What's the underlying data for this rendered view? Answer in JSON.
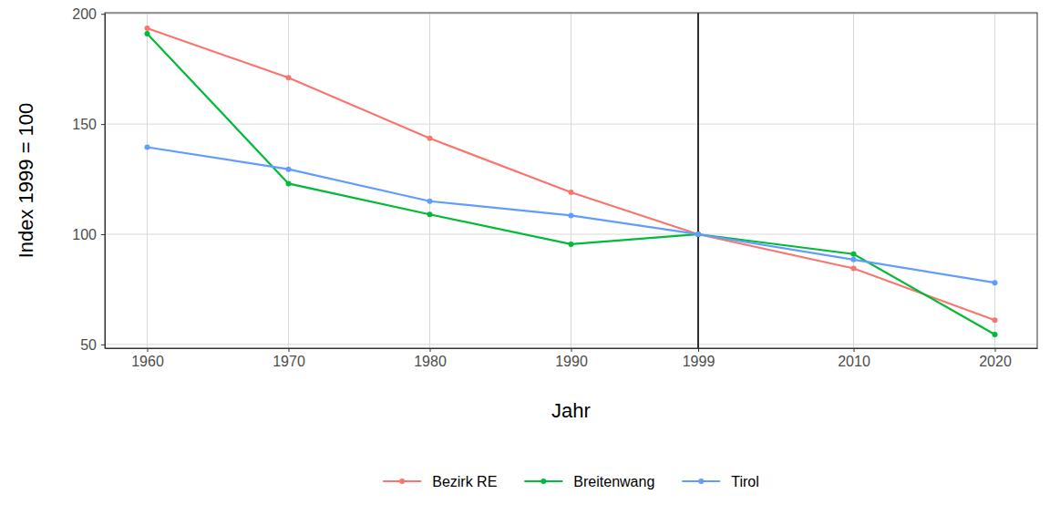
{
  "chart_data": {
    "type": "line",
    "x_label": "Jahr",
    "y_label": "Index 1999 = 100",
    "x": [
      1960,
      1970,
      1980,
      1990,
      1999,
      2010,
      2020
    ],
    "series": [
      {
        "name": "Bezirk RE",
        "color": "#F8766D",
        "values": [
          193.5,
          171,
          143.5,
          119,
          100,
          84.5,
          61
        ]
      },
      {
        "name": "Breitenwang",
        "color": "#00BA38",
        "values": [
          191,
          123,
          109,
          95.5,
          100,
          91,
          54.5
        ]
      },
      {
        "name": "Tirol",
        "color": "#619CFF",
        "values": [
          139.5,
          129.5,
          115,
          108.5,
          100,
          88.5,
          78
        ]
      }
    ],
    "xlim": [
      1957,
      2023
    ],
    "xticks": [
      1960,
      1970,
      1980,
      1990,
      1999,
      2010,
      2020
    ],
    "ylim": [
      48.3,
      200.5
    ],
    "yticks": [
      50,
      100,
      150,
      200
    ],
    "vline": 1999,
    "grid": true,
    "legend": "bottom",
    "marker": "circle",
    "line_style": "solid"
  }
}
